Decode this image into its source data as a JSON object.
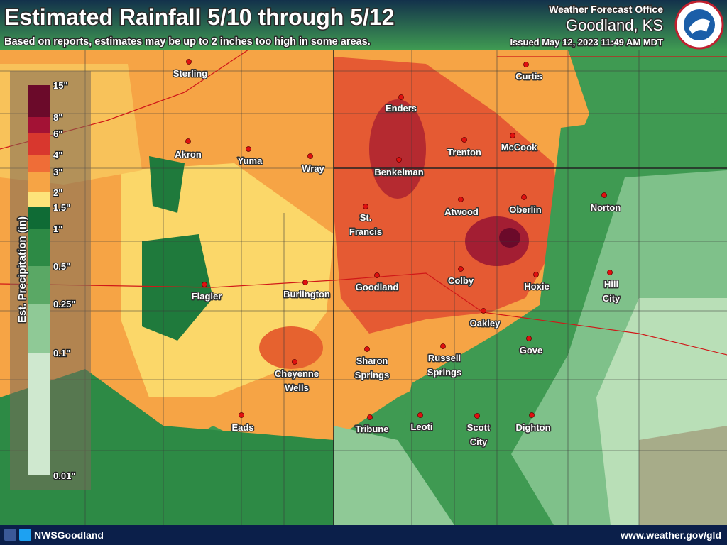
{
  "header": {
    "title": "Estimated Rainfall 5/10 through 5/12",
    "subtitle": "Based on reports, estimates may be up to 2 inches too high in some areas.",
    "office": "Weather Forecast Office",
    "location": "Goodland, KS",
    "issued": "Issued May 12, 2023 11:49 AM MDT"
  },
  "legend": {
    "title": "Est. Precipitation (in)",
    "items": [
      {
        "label": "15\"",
        "color": "#6b0a2a"
      },
      {
        "label": "8\"",
        "color": "#a31235"
      },
      {
        "label": "6\"",
        "color": "#d8372e"
      },
      {
        "label": "4\"",
        "color": "#ef6d37"
      },
      {
        "label": "3\"",
        "color": "#f6a445"
      },
      {
        "label": "2\"",
        "color": "#fde37a"
      },
      {
        "label": "1.5\"",
        "color": "#0f6b35"
      },
      {
        "label": "1\"",
        "color": "#2d8a45"
      },
      {
        "label": "0.5\"",
        "color": "#5aa865"
      },
      {
        "label": "0.25\"",
        "color": "#8fc996"
      },
      {
        "label": "0.1\"",
        "color": "#cfe8cf"
      },
      {
        "label": "0.01\"",
        "color": "#cfe8cf"
      }
    ]
  },
  "cities": [
    {
      "lines": [
        "Sterling"
      ]
    },
    {
      "lines": [
        "Akron"
      ]
    },
    {
      "lines": [
        "Yuma"
      ]
    },
    {
      "lines": [
        "Wray"
      ]
    },
    {
      "lines": [
        "Enders"
      ]
    },
    {
      "lines": [
        "Benkelman"
      ]
    },
    {
      "lines": [
        "Trenton"
      ]
    },
    {
      "lines": [
        "McCook"
      ]
    },
    {
      "lines": [
        "Curtis"
      ]
    },
    {
      "lines": [
        "Norton"
      ]
    },
    {
      "lines": [
        "St.",
        "Francis"
      ]
    },
    {
      "lines": [
        "Atwood"
      ]
    },
    {
      "lines": [
        "Oberlin"
      ]
    },
    {
      "lines": [
        "Goodland"
      ]
    },
    {
      "lines": [
        "Colby"
      ]
    },
    {
      "lines": [
        "Hoxie"
      ]
    },
    {
      "lines": [
        "Hill",
        "City"
      ]
    },
    {
      "lines": [
        "Flagler"
      ]
    },
    {
      "lines": [
        "Burlington"
      ]
    },
    {
      "lines": [
        "Oakley"
      ]
    },
    {
      "lines": [
        "Gove"
      ]
    },
    {
      "lines": [
        "Sharon",
        "Springs"
      ]
    },
    {
      "lines": [
        "Russell",
        "Springs"
      ]
    },
    {
      "lines": [
        "Cheyenne",
        "Wells"
      ]
    },
    {
      "lines": [
        "Eads"
      ]
    },
    {
      "lines": [
        "Tribune"
      ]
    },
    {
      "lines": [
        "Leoti"
      ]
    },
    {
      "lines": [
        "Scott",
        "City"
      ]
    },
    {
      "lines": [
        "Dighton"
      ]
    }
  ],
  "footer": {
    "handle": "NWSGoodland",
    "url": "www.weather.gov/gld"
  }
}
